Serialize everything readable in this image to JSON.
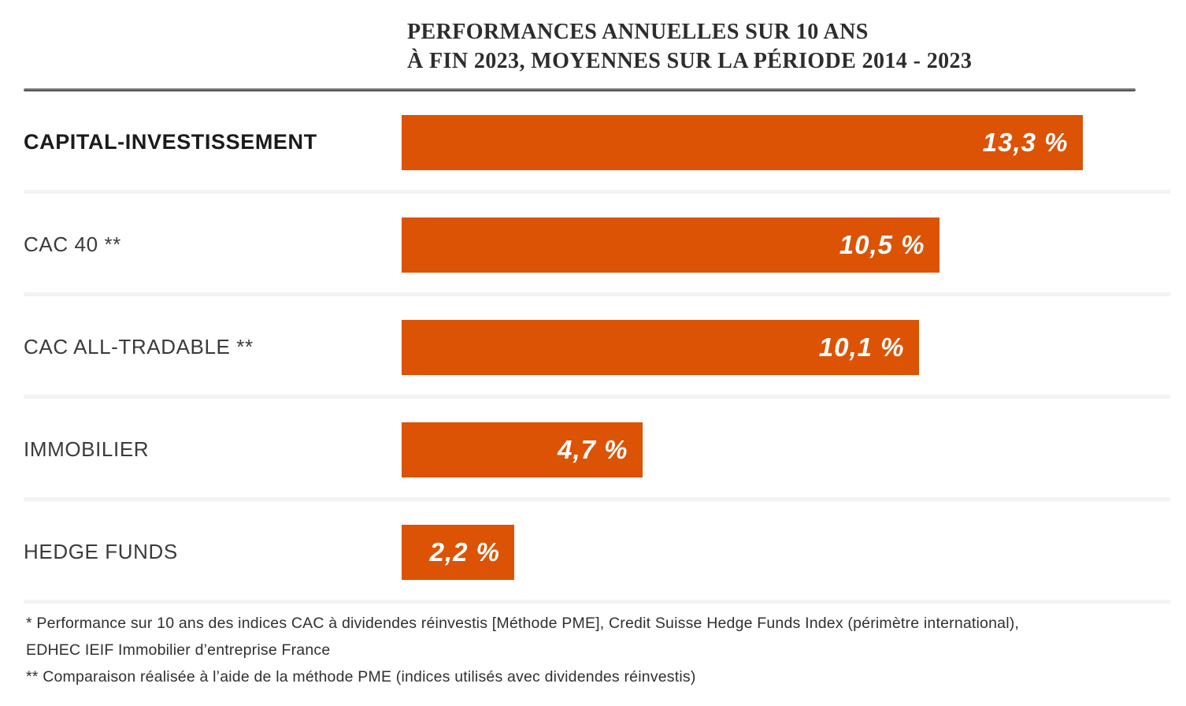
{
  "title": {
    "line1": "PERFORMANCES ANNUELLES SUR 10 ANS",
    "line2": "À FIN 2023, MOYENNES SUR LA PÉRIODE 2014 - 2023"
  },
  "chart_data": {
    "type": "bar",
    "orientation": "horizontal",
    "title": "PERFORMANCES ANNUELLES SUR 10 ANS À FIN 2023, MOYENNES SUR LA PÉRIODE 2014 - 2023",
    "categories": [
      "CAPITAL-INVESTISSEMENT",
      "CAC 40 **",
      "CAC ALL-TRADABLE **",
      "IMMOBILIER",
      "HEDGE FUNDS"
    ],
    "values": [
      13.3,
      10.5,
      10.1,
      4.7,
      2.2
    ],
    "value_labels": [
      "13,3 %",
      "10,5 %",
      "10,1 %",
      "4,7 %",
      "2,2 %"
    ],
    "xlabel": "",
    "ylabel": "",
    "xlim": [
      0,
      13.3
    ],
    "unit": "%",
    "bar_color": "#dc5305",
    "grid": false,
    "legend": false
  },
  "footnotes": {
    "line1": "* Performance sur 10 ans des indices CAC à dividendes réinvestis [Méthode PME], Credit Suisse Hedge Funds Index (périmètre international),",
    "line2": "EDHEC IEIF Immobilier d’entreprise France",
    "line3": "** Comparaison réalisée à l’aide de la méthode PME (indices utilisés avec dividendes réinvestis)"
  }
}
